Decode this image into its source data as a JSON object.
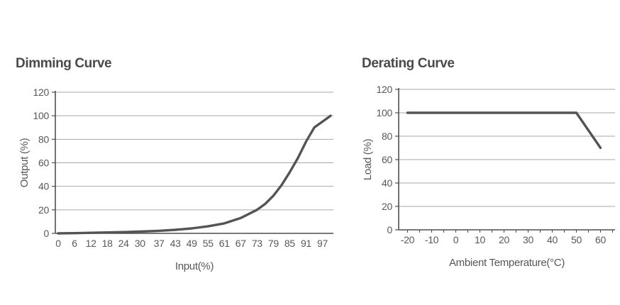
{
  "colors": {
    "title": "#4a4a4a",
    "axis": "#4f4f4f",
    "grid": "#a7a7a7",
    "tick_text": "#58585a",
    "curve": "#545454"
  },
  "chart_data": [
    {
      "type": "line",
      "title": "Dimming Curve",
      "xlabel": "Input(%)",
      "ylabel": "Output (%)",
      "xlim": [
        0,
        100
      ],
      "ylim": [
        0,
        120
      ],
      "xticks": [
        0,
        6,
        12,
        18,
        24,
        30,
        37,
        43,
        49,
        55,
        61,
        67,
        73,
        79,
        85,
        91,
        97
      ],
      "yticks": [
        0,
        20,
        40,
        60,
        80,
        100,
        120
      ],
      "grid": "horizontal",
      "legend": "none",
      "series": [
        {
          "name": "Output",
          "x": [
            0,
            6,
            12,
            18,
            24,
            30,
            37,
            43,
            49,
            55,
            61,
            67,
            73,
            76,
            79,
            82,
            85,
            88,
            91,
            94,
            100
          ],
          "y": [
            0,
            0.2,
            0.5,
            0.8,
            1.1,
            1.5,
            2.2,
            3,
            4.2,
            6,
            8.5,
            13,
            20,
            25,
            32,
            41,
            52,
            64,
            78,
            90,
            100
          ]
        }
      ]
    },
    {
      "type": "line",
      "title": "Derating Curve",
      "xlabel": "Ambient Temperature(°C)",
      "ylabel": "Load (%)",
      "xlim": [
        -20,
        65
      ],
      "ylim": [
        0,
        120
      ],
      "xticks": [
        -20,
        -10,
        0,
        10,
        20,
        30,
        40,
        50,
        60
      ],
      "minor_xticks": [
        -20,
        -15,
        -10,
        -5,
        0,
        5,
        10,
        15,
        20,
        25,
        30,
        35,
        40,
        45,
        50,
        55,
        60,
        65
      ],
      "yticks": [
        0,
        20,
        40,
        60,
        80,
        100,
        120
      ],
      "grid": "horizontal",
      "legend": "none",
      "series": [
        {
          "name": "Load",
          "x": [
            -20,
            50,
            60
          ],
          "y": [
            100,
            100,
            70
          ]
        }
      ]
    }
  ]
}
